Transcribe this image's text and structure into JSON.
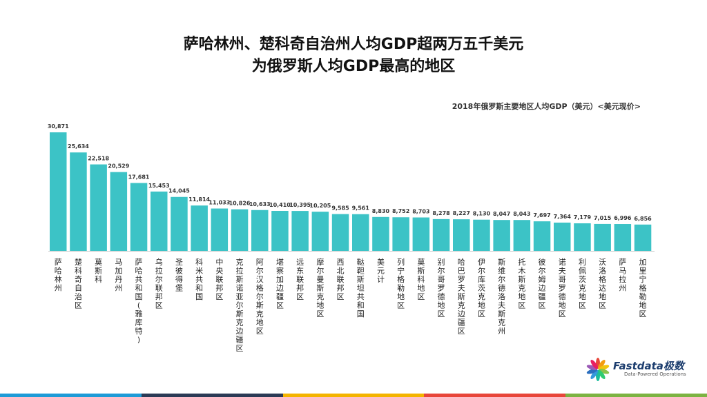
{
  "header": {
    "title_line1": "萨哈林州、楚科奇自治州人均GDP超两万五千美元",
    "title_line2": "为俄罗斯人均GDP最高的地区"
  },
  "chart_data": {
    "type": "bar",
    "subtitle": "2018年俄罗斯主要地区人均GDP（美元）<美元现价>",
    "bar_color": "#3cc3c6",
    "ylim": [
      0,
      32000
    ],
    "grid": false,
    "categories": [
      "萨哈林州",
      "楚科奇自治区",
      "莫斯科",
      "马加丹州",
      "萨哈共和国(雅库特)",
      "乌拉尔联邦区",
      "圣彼得堡",
      "科米共和国",
      "中央联邦区",
      "克拉斯诺亚尔斯克边疆区",
      "阿尔汉格尔斯克地区",
      "堪察加边疆区",
      "远东联邦区",
      "摩尔曼斯克地区",
      "西北联邦区",
      "鞑靼斯坦共和国",
      "美元计",
      "列宁格勒地区",
      "莫斯科地区",
      "别尔哥罗德地区",
      "哈巴罗夫斯克边疆区",
      "伊尔库茨克地区",
      "斯维尔德洛夫斯克州",
      "托木斯克地区",
      "彼尔姆边疆区",
      "诺夫哥罗德地区",
      "利佩茨克地区",
      "沃洛格达地区",
      "萨马拉州",
      "加里宁格勒地区"
    ],
    "values": [
      30871,
      25634,
      22518,
      20529,
      17681,
      15453,
      14045,
      11814,
      11033,
      10826,
      10633,
      10410,
      10395,
      10205,
      9585,
      9561,
      8830,
      8752,
      8703,
      8278,
      8227,
      8130,
      8047,
      8043,
      7697,
      7364,
      7179,
      7015,
      6996,
      6856
    ],
    "data_labels": [
      "30,871",
      "25,634",
      "22,518",
      "20,529",
      "17,681",
      "15,453",
      "14,045",
      "11,814",
      "11,033",
      "10,826",
      "10,633",
      "10,410",
      "10,395",
      "10,205",
      "9,585",
      "9,561",
      "8,830",
      "8,752",
      "8,703",
      "8,278",
      "8,227",
      "8,130",
      "8,047",
      "8,043",
      "7,697",
      "7,364",
      "7,179",
      "7,015",
      "6,996",
      "6,856"
    ]
  },
  "logo": {
    "text": "Fastdata极数",
    "tagline": "Data-Powered Operations",
    "petal_colors": [
      "#e8463a",
      "#f39c12",
      "#f1c40f",
      "#8bc34a",
      "#2ecc71",
      "#1abc9c",
      "#3498db",
      "#2c6fbf",
      "#9b59b6",
      "#e91e63"
    ]
  },
  "footer": {
    "colors": [
      "#1e9bd7",
      "#2b3a55",
      "#f4b400",
      "#e8463a",
      "#7cb342"
    ]
  }
}
